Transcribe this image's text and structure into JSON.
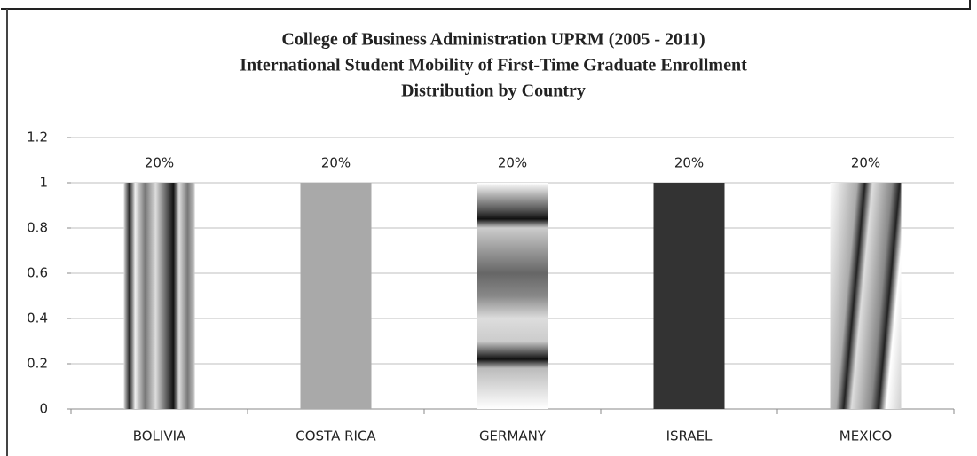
{
  "chart_data": {
    "type": "bar",
    "title": [
      "College of Business Administration  UPRM (2005 - 2011)",
      "International Student Mobility of First-Time Graduate Enrollment",
      "Distribution by Country"
    ],
    "categories": [
      "BOLIVIA",
      "COSTA RICA",
      "GERMANY",
      "ISRAEL",
      "MEXICO"
    ],
    "values": [
      1,
      1,
      1,
      1,
      1
    ],
    "percent_labels": [
      "20%",
      "20%",
      "20%",
      "20%",
      "20%"
    ],
    "ylim": [
      0,
      1.2
    ],
    "yticks": [
      0,
      0.2,
      0.4,
      0.6,
      0.8,
      1,
      1.2
    ],
    "grid": true
  }
}
